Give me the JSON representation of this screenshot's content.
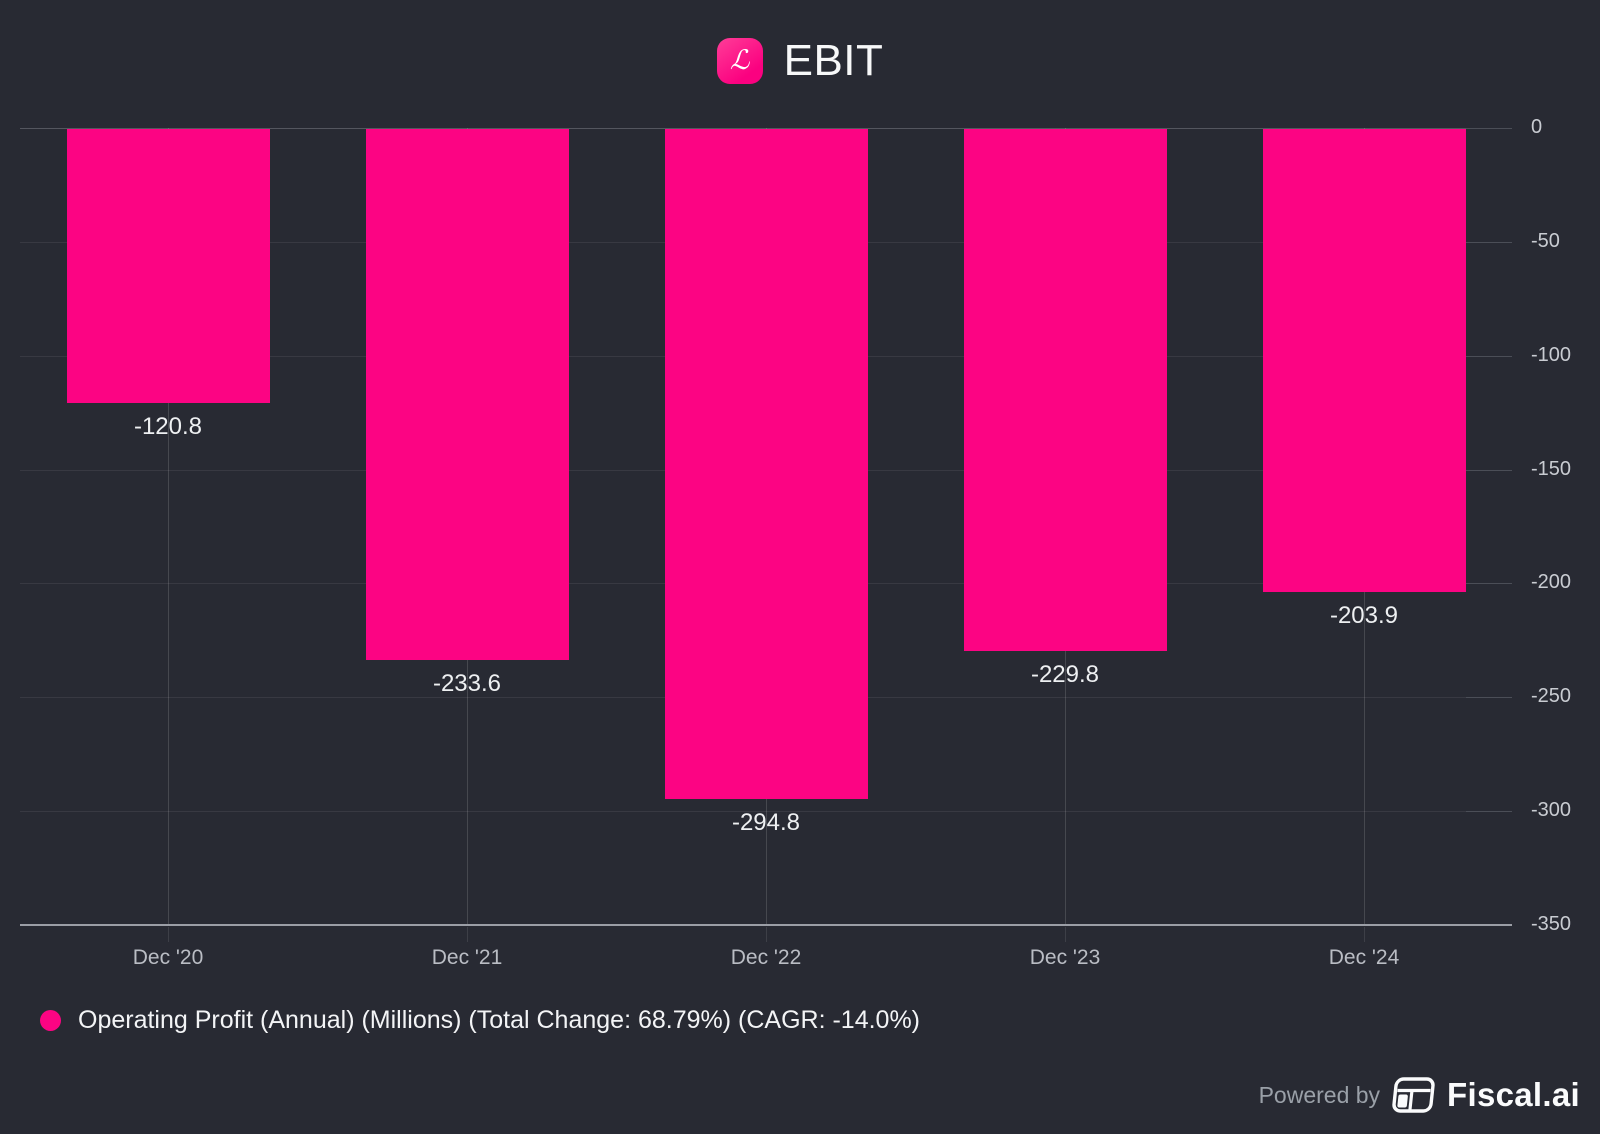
{
  "header": {
    "title": "EBIT",
    "logo_glyph": "ℒ"
  },
  "chart_data": {
    "type": "bar",
    "title": "EBIT",
    "categories": [
      "Dec '20",
      "Dec '21",
      "Dec '22",
      "Dec '23",
      "Dec '24"
    ],
    "values": [
      -120.8,
      -233.6,
      -294.8,
      -229.8,
      -203.9
    ],
    "series": [
      {
        "name": "Operating Profit (Annual) (Millions) (Total Change: 68.79%) (CAGR: -14.0%)",
        "values": [
          -120.8,
          -233.6,
          -294.8,
          -229.8,
          -203.9
        ]
      }
    ],
    "xlabel": "",
    "ylabel": "",
    "ylim": [
      -350,
      0
    ],
    "yticks": [
      0,
      -50,
      -100,
      -150,
      -200,
      -250,
      -300,
      -350
    ],
    "grid": true,
    "legend_position": "bottom-left",
    "bar_color": "#fc0483",
    "value_label_decimals": 1
  },
  "legend": {
    "label": "Operating Profit (Annual) (Millions) (Total Change: 68.79%) (CAGR: -14.0%)",
    "marker_color": "#fc0483"
  },
  "footer": {
    "powered_by": "Powered by",
    "brand": "Fiscal.ai"
  },
  "colors": {
    "background": "#282a33",
    "bar": "#fc0483",
    "accent_pink": "#fb0180",
    "axis_line": "#9b9ea6",
    "tick_text": "#c9ccd2"
  }
}
